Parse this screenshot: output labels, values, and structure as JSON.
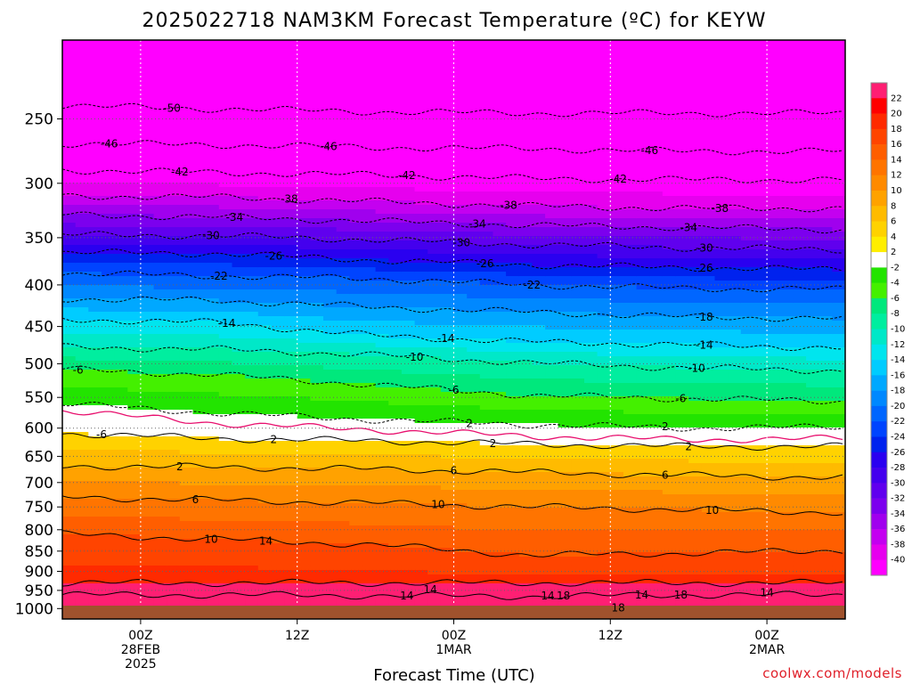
{
  "chart_data": {
    "type": "heatmap",
    "title": "2025022718 NAM3KM Forecast Temperature (ºC) for KEYW",
    "xlabel": "Forecast Time (UTC)",
    "ylabel": "",
    "y_scale": "log-pressure (inverted)",
    "y_ticks": [
      250,
      300,
      350,
      400,
      450,
      500,
      550,
      600,
      650,
      700,
      750,
      800,
      850,
      900,
      950,
      1000
    ],
    "x_ticks": [
      {
        "hour": 6,
        "lines": [
          "00Z",
          "28FEB",
          "2025"
        ]
      },
      {
        "hour": 18,
        "lines": [
          "12Z",
          "",
          ""
        ]
      },
      {
        "hour": 30,
        "lines": [
          "00Z",
          "1MAR",
          ""
        ]
      },
      {
        "hour": 42,
        "lines": [
          "12Z",
          "",
          ""
        ]
      },
      {
        "hour": 54,
        "lines": [
          "00Z",
          "2MAR",
          ""
        ]
      }
    ],
    "x_range_hours": [
      0,
      60
    ],
    "y_range_hpa": [
      200,
      1030
    ],
    "grid": true,
    "colorbar": {
      "placement": "right",
      "labels": [
        "22",
        "20",
        "18",
        "16",
        "14",
        "12",
        "10",
        "8",
        "6",
        "4",
        "2",
        "-2",
        "-4",
        "-6",
        "-8",
        "-10",
        "-12",
        "-14",
        "-16",
        "-18",
        "-20",
        "-22",
        "-24",
        "-26",
        "-28",
        "-30",
        "-32",
        "-34",
        "-36",
        "-38",
        "-40"
      ],
      "colors": [
        "#ff1f73",
        "#ff0000",
        "#ff2a00",
        "#ff4400",
        "#ff5e00",
        "#ff7400",
        "#ff8a00",
        "#ffa200",
        "#ffbb00",
        "#ffd200",
        "#ffee00",
        "#ffffff",
        "#22e400",
        "#44f000",
        "#00e87c",
        "#00ee9f",
        "#00e8c8",
        "#00e5ee",
        "#00ccff",
        "#00a8ff",
        "#0088ff",
        "#0066ff",
        "#0044ff",
        "#0022ee",
        "#2a00f0",
        "#4400ee",
        "#6000ee",
        "#7c00ee",
        "#a000ee",
        "#c400f0",
        "#e600ee",
        "#ff00ff"
      ]
    },
    "contour_levels": [
      {
        "t": 22,
        "p": [
          930,
          930,
          930,
          930,
          930,
          930
        ]
      },
      {
        "t": 18,
        "p": [
          962,
          962,
          964,
          966,
          962,
          962
        ]
      },
      {
        "t": 14,
        "p": [
          810,
          822,
          835,
          860,
          855,
          848
        ]
      },
      {
        "t": 10,
        "p": [
          729,
          736,
          742,
          750,
          756,
          762
        ]
      },
      {
        "t": 6,
        "p": [
          668,
          670,
          674,
          680,
          686,
          690
        ]
      },
      {
        "t": 2,
        "p": [
          609,
          618,
          622,
          628,
          632,
          632
        ]
      },
      {
        "t": 0,
        "p": [
          571,
          592,
          603,
          614,
          620,
          618
        ]
      },
      {
        "t": -2,
        "p": [
          560,
          575,
          586,
          594,
          600,
          598
        ]
      },
      {
        "t": -6,
        "p": [
          508,
          516,
          531,
          547,
          552,
          556
        ]
      },
      {
        "t": -10,
        "p": [
          477,
          480,
          488,
          499,
          506,
          510
        ]
      },
      {
        "t": -14,
        "p": [
          441,
          445,
          462,
          470,
          474,
          478
        ]
      },
      {
        "t": -18,
        "p": [
          416,
          418,
          426,
          432,
          438,
          440
        ]
      },
      {
        "t": -22,
        "p": [
          387,
          390,
          393,
          400,
          404,
          405
        ]
      },
      {
        "t": -26,
        "p": [
          365,
          366,
          373,
          378,
          381,
          383
        ]
      },
      {
        "t": -30,
        "p": [
          347,
          348,
          352,
          357,
          360,
          362
        ]
      },
      {
        "t": -34,
        "p": [
          328,
          330,
          334,
          338,
          340,
          342
        ]
      },
      {
        "t": -38,
        "p": [
          311,
          312,
          316,
          320,
          322,
          322
        ]
      },
      {
        "t": -42,
        "p": [
          289,
          291,
          293,
          296,
          297,
          297
        ]
      },
      {
        "t": -46,
        "p": [
          268,
          269,
          271,
          272,
          274,
          274
        ]
      },
      {
        "t": -50,
        "p": [
          241,
          243,
          245,
          246,
          246,
          246
        ]
      }
    ],
    "contour_label_values": [
      "-50",
      "-46",
      "-46",
      "-46",
      "-42",
      "-42",
      "-42",
      "-38",
      "-38",
      "-38",
      "-34",
      "-34",
      "-34",
      "-30",
      "-30",
      "-30",
      "-26",
      "-26",
      "-26",
      "-22",
      "-22",
      "-18",
      "-14",
      "-14",
      "-14",
      "-10",
      "-10",
      "-6",
      "-6",
      "-6",
      "-6",
      "2",
      "2",
      "2",
      "2",
      "2",
      "2",
      "6",
      "6",
      "6",
      "10",
      "10",
      "10",
      "14",
      "14",
      "14",
      "14",
      "14",
      "14",
      "18",
      "18",
      "18",
      "18"
    ]
  },
  "footer": {
    "credit": "coolwx.com/models"
  }
}
